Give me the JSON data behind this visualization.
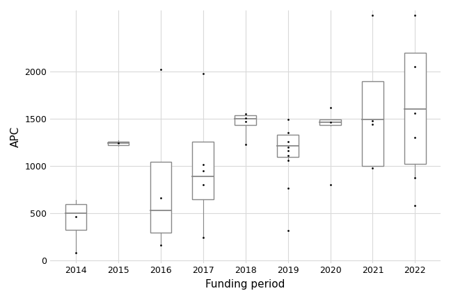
{
  "years": [
    2014,
    2015,
    2016,
    2017,
    2018,
    2019,
    2020,
    2021,
    2022
  ],
  "boxes": {
    "2014": {
      "q1": 320,
      "median": 500,
      "q3": 590,
      "whisker_low": 80,
      "whisker_high": 640,
      "mean": 460,
      "outliers": [
        80
      ]
    },
    "2015": {
      "q1": 1220,
      "median": 1240,
      "q3": 1255,
      "whisker_low": 1215,
      "whisker_high": 1270,
      "mean": 1240,
      "outliers": []
    },
    "2016": {
      "q1": 290,
      "median": 530,
      "q3": 1040,
      "whisker_low": 160,
      "whisker_high": 1040,
      "mean": 660,
      "outliers": [
        160,
        2020
      ]
    },
    "2017": {
      "q1": 645,
      "median": 890,
      "q3": 1260,
      "whisker_low": 240,
      "whisker_high": 1260,
      "mean": 950,
      "outliers": [
        240,
        800,
        1010,
        1980
      ]
    },
    "2018": {
      "q1": 1435,
      "median": 1500,
      "q3": 1540,
      "whisker_low": 1230,
      "whisker_high": 1540,
      "mean": 1470,
      "outliers": [
        1230,
        1510,
        1550
      ]
    },
    "2019": {
      "q1": 1095,
      "median": 1215,
      "q3": 1330,
      "whisker_low": 1050,
      "whisker_high": 1330,
      "mean": 1200,
      "outliers": [
        310,
        760,
        1060,
        1110,
        1160,
        1260,
        1350,
        1490
      ]
    },
    "2020": {
      "q1": 1435,
      "median": 1460,
      "q3": 1490,
      "whisker_low": 1430,
      "whisker_high": 1490,
      "mean": 1460,
      "outliers": [
        800,
        1620
      ]
    },
    "2021": {
      "q1": 1000,
      "median": 1490,
      "q3": 1900,
      "whisker_low": 1000,
      "whisker_high": 1900,
      "mean": 1480,
      "outliers": [
        980,
        1440,
        2600
      ]
    },
    "2022": {
      "q1": 1020,
      "median": 1600,
      "q3": 2200,
      "whisker_low": 870,
      "whisker_high": 2200,
      "mean": 1560,
      "outliers": [
        580,
        870,
        1300,
        2050,
        2600
      ]
    }
  },
  "xlabel": "Funding period",
  "ylabel": "APC",
  "ylim": [
    -30,
    2650
  ],
  "yticks": [
    0,
    500,
    1000,
    1500,
    2000
  ],
  "box_color": "white",
  "box_edge_color": "#888888",
  "median_color": "#888888",
  "whisker_color": "#888888",
  "mean_marker_color": "black",
  "mean_marker_size": 4,
  "outlier_marker_color": "black",
  "outlier_marker_size": 4,
  "grid_color": "#d9d9d9",
  "background_color": "white",
  "xlabel_fontsize": 11,
  "ylabel_fontsize": 11,
  "tick_fontsize": 9,
  "box_width": 0.5
}
